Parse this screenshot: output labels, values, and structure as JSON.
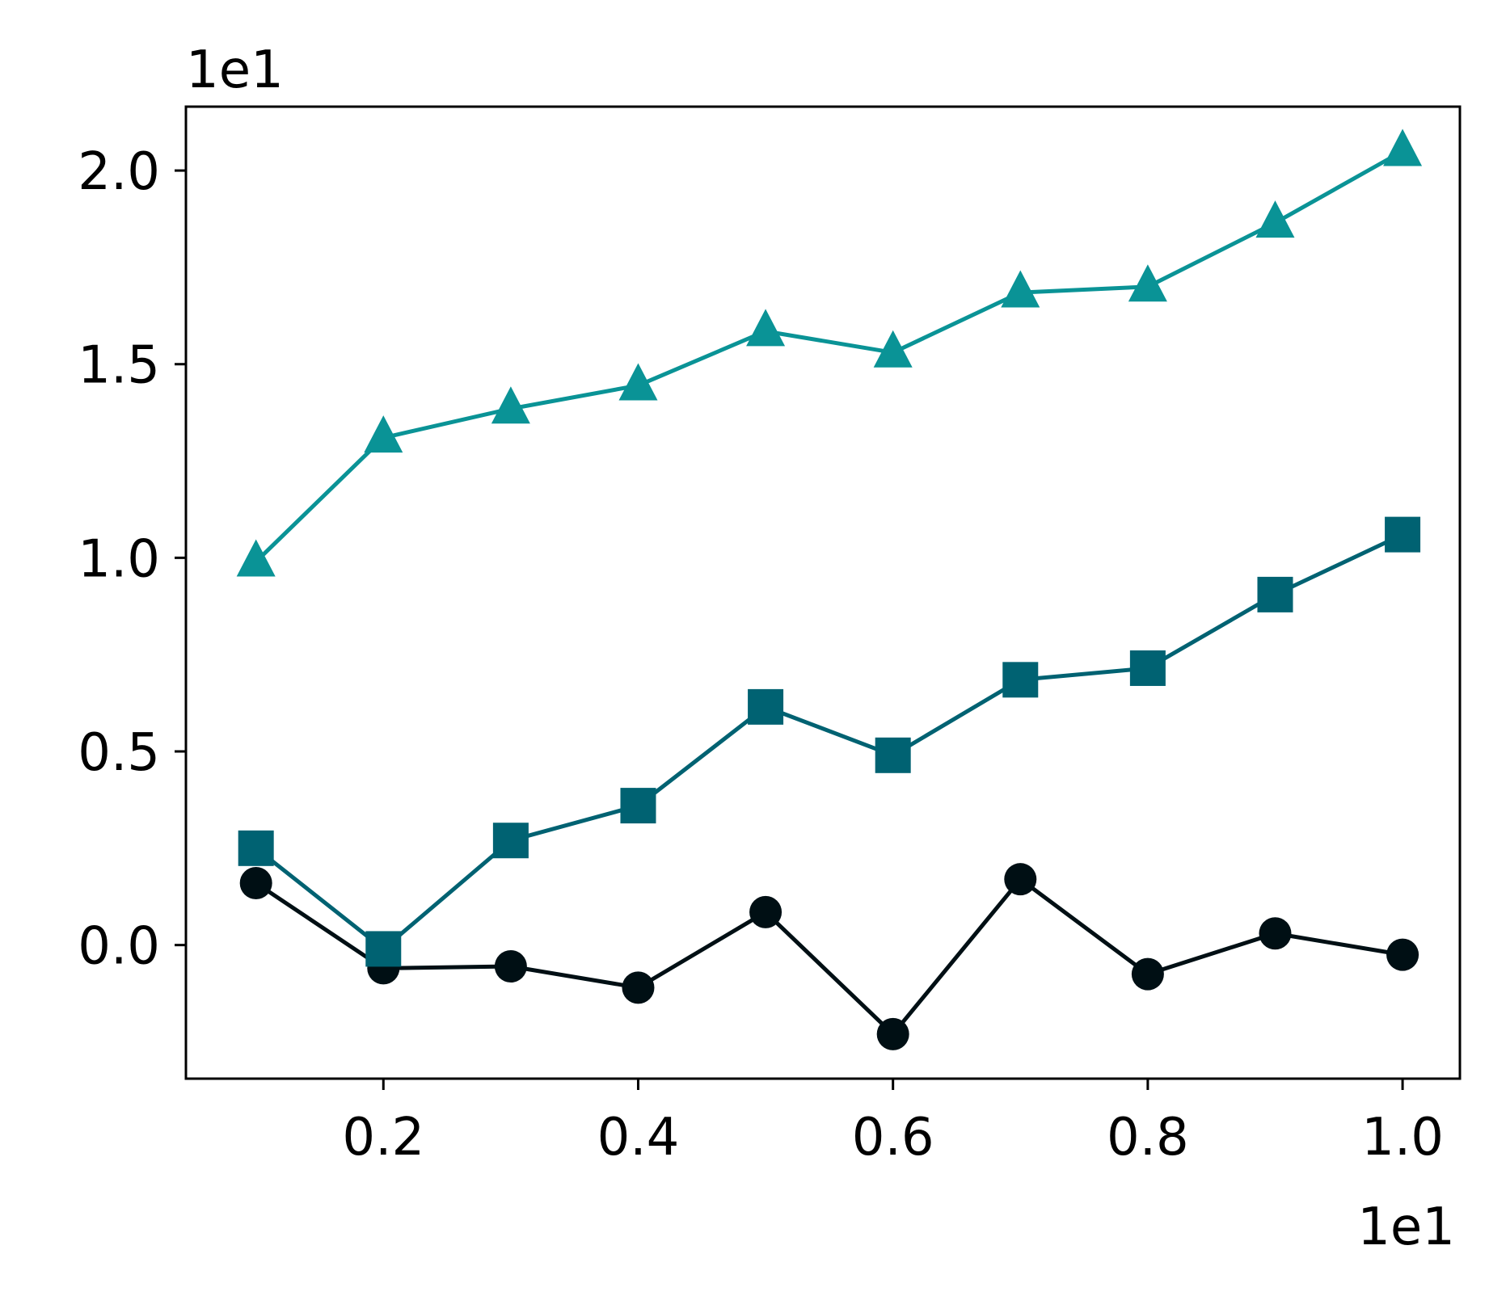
{
  "chart_data": {
    "type": "line",
    "x": [
      0.1,
      0.2,
      0.3,
      0.4,
      0.5,
      0.6,
      0.7,
      0.8,
      0.9,
      1.0
    ],
    "series": [
      {
        "values": [
          0.16,
          -0.06,
          -0.055,
          -0.11,
          0.085,
          -0.23,
          0.17,
          -0.075,
          0.03,
          -0.025
        ],
        "color": "#000f14",
        "marker": "circle"
      },
      {
        "values": [
          0.25,
          -0.01,
          0.27,
          0.36,
          0.615,
          0.49,
          0.685,
          0.715,
          0.905,
          1.06
        ],
        "color": "#006272",
        "marker": "square"
      },
      {
        "values": [
          0.99,
          1.31,
          1.385,
          1.445,
          1.585,
          1.53,
          1.685,
          1.7,
          1.865,
          2.05
        ],
        "color": "#0a9396",
        "marker": "triangle"
      }
    ],
    "xlim": [
      0.045,
      1.045
    ],
    "ylim": [
      -0.345,
      2.165
    ],
    "xticks": [
      0.2,
      0.4,
      0.6,
      0.8,
      1.0
    ],
    "xtick_labels": [
      "0.2",
      "0.4",
      "0.6",
      "0.8",
      "1.0"
    ],
    "yticks": [
      0.0,
      0.5,
      1.0,
      1.5,
      2.0
    ],
    "ytick_labels": [
      "0.0",
      "0.5",
      "1.0",
      "1.5",
      "2.0"
    ],
    "x_offset_label": "1e1",
    "y_offset_label": "1e1",
    "grid": false,
    "legend": "none"
  }
}
